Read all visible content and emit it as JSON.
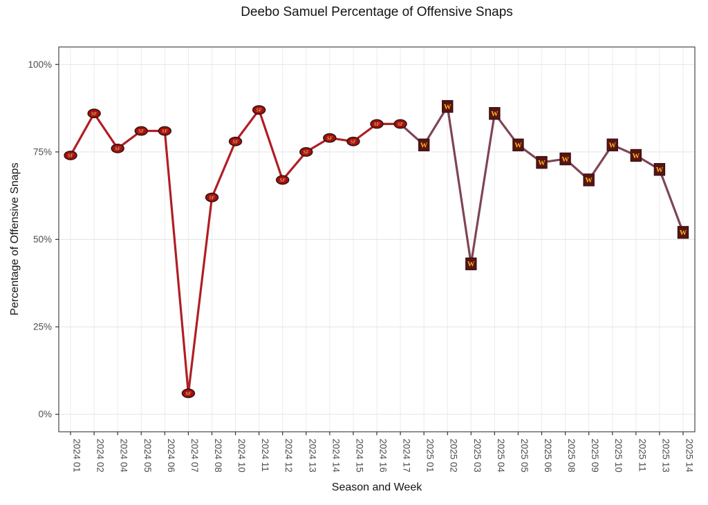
{
  "chart_data": {
    "type": "line",
    "title": "Deebo Samuel Percentage of Offensive Snaps",
    "xlabel": "Season and Week",
    "ylabel": "Percentage of Offensive Snaps",
    "ylim": [
      0,
      100
    ],
    "y_tick_values": [
      0,
      25,
      50,
      75,
      100
    ],
    "y_tick_labels": [
      "0%",
      "25%",
      "50%",
      "75%",
      "100%"
    ],
    "grid": true,
    "legend": "none",
    "teams": {
      "SF": {
        "name": "San Francisco 49ers",
        "line_color": "#B01E24",
        "marker_fill": "#A50D12",
        "marker_border": "#26150F",
        "marker_shape": "oval",
        "logo_text": "SF",
        "logo_color": "#D8B04A"
      },
      "WAS": {
        "name": "Washington Commanders",
        "line_color": "#7E4553",
        "marker_fill": "#5A1414",
        "marker_border": "#3A1010",
        "marker_shape": "square",
        "logo_text": "W",
        "logo_color": "#FFB612"
      }
    },
    "points": [
      {
        "week": "2024 01",
        "value": 74,
        "team": "SF"
      },
      {
        "week": "2024 02",
        "value": 86,
        "team": "SF"
      },
      {
        "week": "2024 04",
        "value": 76,
        "team": "SF"
      },
      {
        "week": "2024 05",
        "value": 81,
        "team": "SF"
      },
      {
        "week": "2024 06",
        "value": 81,
        "team": "SF"
      },
      {
        "week": "2024 07",
        "value": 6,
        "team": "SF"
      },
      {
        "week": "2024 08",
        "value": 62,
        "team": "SF"
      },
      {
        "week": "2024 10",
        "value": 78,
        "team": "SF"
      },
      {
        "week": "2024 11",
        "value": 87,
        "team": "SF"
      },
      {
        "week": "2024 12",
        "value": 67,
        "team": "SF"
      },
      {
        "week": "2024 13",
        "value": 75,
        "team": "SF"
      },
      {
        "week": "2024 14",
        "value": 79,
        "team": "SF"
      },
      {
        "week": "2024 15",
        "value": 78,
        "team": "SF"
      },
      {
        "week": "2024 16",
        "value": 83,
        "team": "SF"
      },
      {
        "week": "2024 17",
        "value": 83,
        "team": "SF"
      },
      {
        "week": "2025 01",
        "value": 77,
        "team": "WAS"
      },
      {
        "week": "2025 02",
        "value": 88,
        "team": "WAS"
      },
      {
        "week": "2025 03",
        "value": 43,
        "team": "WAS"
      },
      {
        "week": "2025 04",
        "value": 86,
        "team": "WAS"
      },
      {
        "week": "2025 05",
        "value": 77,
        "team": "WAS"
      },
      {
        "week": "2025 06",
        "value": 72,
        "team": "WAS"
      },
      {
        "week": "2025 08",
        "value": 73,
        "team": "WAS"
      },
      {
        "week": "2025 09",
        "value": 67,
        "team": "WAS"
      },
      {
        "week": "2025 10",
        "value": 77,
        "team": "WAS"
      },
      {
        "week": "2025 11",
        "value": 74,
        "team": "WAS"
      },
      {
        "week": "2025 13",
        "value": 70,
        "team": "WAS"
      },
      {
        "week": "2025 14",
        "value": 52,
        "team": "WAS"
      }
    ]
  }
}
